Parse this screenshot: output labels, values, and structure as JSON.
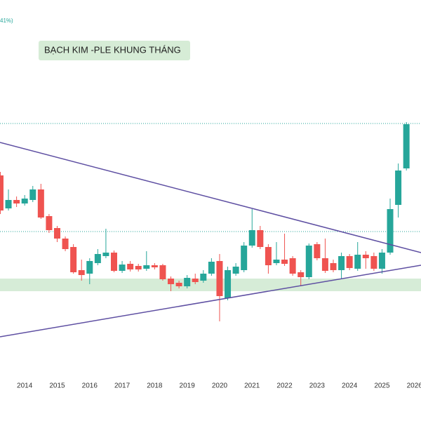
{
  "chart_data": {
    "type": "candlestick",
    "corner_text": "41%)",
    "annotation": "BẠCH KIM -PLE KHUNG THÁNG",
    "up_color": "#26a69a",
    "down_color": "#ef5350",
    "xlim": [
      2013.24,
      2026.2
    ],
    "xticks": [
      2014,
      2015,
      2016,
      2017,
      2018,
      2019,
      2020,
      2021,
      2022,
      2023,
      2024,
      2025,
      2026
    ],
    "ylim": [
      0,
      2400
    ],
    "x": [
      2013.25,
      2013.5,
      2013.75,
      2014,
      2014.25,
      2014.5,
      2014.75,
      2015,
      2015.25,
      2015.5,
      2015.75,
      2016,
      2016.25,
      2016.5,
      2016.75,
      2017,
      2017.25,
      2017.5,
      2017.75,
      2018,
      2018.25,
      2018.5,
      2018.75,
      2019,
      2019.25,
      2019.5,
      2019.75,
      2020,
      2020.25,
      2020.5,
      2020.75,
      2021,
      2021.25,
      2021.5,
      2021.75,
      2022,
      2022.25,
      2022.5,
      2022.75,
      2023,
      2023.25,
      2023.5,
      2023.75,
      2024,
      2024.25,
      2024.5,
      2024.75,
      2025,
      2025.25,
      2025.5,
      2025.75
    ],
    "open": [
      1400,
      1212,
      1260,
      1240,
      1260,
      1320,
      1168,
      1100,
      1040,
      992,
      860,
      840,
      900,
      940,
      960,
      856,
      896,
      884,
      868,
      888,
      888,
      812,
      788,
      768,
      812,
      800,
      840,
      912,
      700,
      840,
      860,
      1000,
      1088,
      992,
      900,
      920,
      928,
      848,
      820,
      1008,
      928,
      900,
      860,
      940,
      868,
      948,
      940,
      868,
      960,
      1232,
      1440
    ],
    "high": [
      1420,
      1320,
      1280,
      1288,
      1340,
      1352,
      1180,
      1112,
      1052,
      1008,
      920,
      928,
      980,
      1096,
      972,
      912,
      912,
      896,
      968,
      900,
      896,
      824,
      800,
      832,
      840,
      860,
      928,
      952,
      880,
      900,
      1020,
      1208,
      1112,
      1008,
      1020,
      1068,
      940,
      860,
      1012,
      1020,
      1040,
      920,
      960,
      952,
      1020,
      968,
      960,
      980,
      1268,
      1468,
      1704
    ],
    "low": [
      1180,
      1200,
      1220,
      1228,
      1248,
      1152,
      1072,
      1020,
      968,
      840,
      800,
      780,
      888,
      928,
      848,
      844,
      852,
      852,
      856,
      864,
      800,
      740,
      756,
      756,
      780,
      788,
      828,
      568,
      688,
      828,
      848,
      988,
      980,
      840,
      888,
      884,
      828,
      768,
      808,
      916,
      844,
      848,
      808,
      860,
      856,
      868,
      856,
      840,
      948,
      1160,
      1428
    ],
    "close": [
      1200,
      1260,
      1240,
      1268,
      1320,
      1160,
      1088,
      1040,
      980,
      848,
      832,
      912,
      952,
      960,
      856,
      892,
      864,
      864,
      888,
      876,
      808,
      780,
      768,
      816,
      792,
      840,
      908,
      712,
      860,
      880,
      1000,
      1088,
      992,
      888,
      920,
      896,
      840,
      820,
      1000,
      928,
      856,
      860,
      940,
      872,
      948,
      928,
      868,
      960,
      1208,
      1428,
      1692
    ]
  }
}
